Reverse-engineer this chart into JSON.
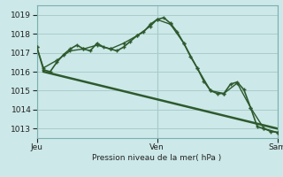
{
  "title": "Pression niveau de la mer( hPa )",
  "bg_color": "#cce8e8",
  "grid_color": "#aacccc",
  "line_color": "#2d5a2d",
  "ylim": [
    1012.5,
    1019.5
  ],
  "yticks": [
    1013,
    1014,
    1015,
    1016,
    1017,
    1018,
    1019
  ],
  "xtick_labels": [
    "Jeu",
    "Ven",
    "Sam"
  ],
  "xtick_positions": [
    0,
    18,
    36
  ],
  "curve1_x": [
    0,
    1,
    2,
    3,
    4,
    5,
    6,
    7,
    8,
    9,
    10,
    11,
    12,
    13,
    14,
    15,
    16,
    17,
    18,
    19,
    20,
    21,
    22,
    23,
    24,
    25,
    26,
    27,
    28,
    29,
    30,
    31,
    32,
    33,
    34,
    35,
    36
  ],
  "curve1_y": [
    1017.3,
    1016.1,
    1016.0,
    1016.5,
    1016.9,
    1017.2,
    1017.4,
    1017.2,
    1017.1,
    1017.5,
    1017.3,
    1017.2,
    1017.1,
    1017.3,
    1017.6,
    1017.9,
    1018.1,
    1018.5,
    1018.75,
    1018.85,
    1018.55,
    1018.1,
    1017.5,
    1016.8,
    1016.2,
    1015.5,
    1015.0,
    1014.85,
    1014.85,
    1015.35,
    1015.45,
    1015.05,
    1014.1,
    1013.1,
    1013.0,
    1012.85,
    1012.8
  ],
  "curve2_x": [
    0,
    1,
    3,
    5,
    7,
    9,
    11,
    13,
    15,
    17,
    18,
    20,
    22,
    24,
    26,
    28,
    30,
    32,
    34,
    36
  ],
  "curve2_y": [
    1017.3,
    1016.2,
    1016.6,
    1017.1,
    1017.2,
    1017.4,
    1017.2,
    1017.5,
    1017.9,
    1018.4,
    1018.75,
    1018.5,
    1017.5,
    1016.2,
    1015.0,
    1014.85,
    1015.4,
    1014.1,
    1013.0,
    1012.8
  ],
  "trend_x": [
    1,
    36
  ],
  "trend_y": [
    1016.0,
    1013.0
  ]
}
